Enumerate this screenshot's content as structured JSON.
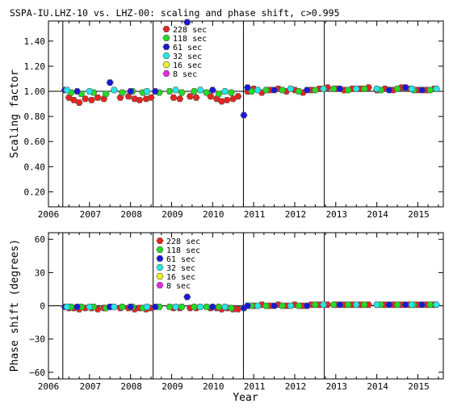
{
  "chart_data": {
    "title": "SSPA-IU.LHZ-10 vs. LHZ-00: scaling and phase shift, c>0.995",
    "xlabel": "Year",
    "x_ticks": [
      "2006",
      "2007",
      "2008",
      "2009",
      "2010",
      "2011",
      "2012",
      "2013",
      "2014",
      "2015"
    ],
    "xlim": [
      2006.0,
      2015.62
    ],
    "event_lines_x": [
      2006.35,
      2008.55,
      2010.75,
      2012.72
    ],
    "legend": [
      {
        "label": "228 sec",
        "color": "#e8231e"
      },
      {
        "label": "118 sec",
        "color": "#22dd22"
      },
      {
        "label": "61 sec",
        "color": "#1818d8"
      },
      {
        "label": "32 sec",
        "color": "#22e8e8"
      },
      {
        "label": "16 sec",
        "color": "#f2f222"
      },
      {
        "label": "8 sec",
        "color": "#e825e8"
      }
    ],
    "panels": [
      {
        "type": "scatter",
        "ylabel": "Scaling factor",
        "ylim": [
          0.08,
          1.56
        ],
        "y_ticks": [
          "0.20",
          "0.40",
          "0.60",
          "0.80",
          "1.00",
          "1.20",
          "1.40"
        ],
        "baseline": 1.0,
        "series": [
          {
            "name": "228 sec",
            "color": "#e8231e",
            "points": [
              [
                2006.5,
                0.95
              ],
              [
                2006.62,
                0.93
              ],
              [
                2006.75,
                0.91
              ],
              [
                2006.9,
                0.94
              ],
              [
                2007.05,
                0.93
              ],
              [
                2007.2,
                0.95
              ],
              [
                2007.35,
                0.94
              ],
              [
                2007.75,
                0.95
              ],
              [
                2007.95,
                0.96
              ],
              [
                2008.1,
                0.94
              ],
              [
                2008.22,
                0.93
              ],
              [
                2008.38,
                0.94
              ],
              [
                2008.5,
                0.95
              ],
              [
                2009.05,
                0.95
              ],
              [
                2009.2,
                0.94
              ],
              [
                2009.45,
                0.96
              ],
              [
                2009.6,
                0.95
              ],
              [
                2009.95,
                0.96
              ],
              [
                2010.1,
                0.94
              ],
              [
                2010.22,
                0.92
              ],
              [
                2010.35,
                0.93
              ],
              [
                2010.5,
                0.94
              ],
              [
                2010.62,
                0.96
              ],
              [
                2010.85,
                1.0
              ],
              [
                2011.0,
                1.02
              ],
              [
                2011.2,
                0.99
              ],
              [
                2011.4,
                1.01
              ],
              [
                2011.6,
                1.02
              ],
              [
                2011.8,
                1.0
              ],
              [
                2012.0,
                1.01
              ],
              [
                2012.2,
                0.99
              ],
              [
                2012.4,
                1.01
              ],
              [
                2012.6,
                1.02
              ],
              [
                2012.8,
                1.03
              ],
              [
                2013.0,
                1.02
              ],
              [
                2013.2,
                1.01
              ],
              [
                2013.4,
                1.02
              ],
              [
                2013.6,
                1.02
              ],
              [
                2013.8,
                1.03
              ],
              [
                2014.0,
                1.01
              ],
              [
                2014.2,
                1.02
              ],
              [
                2014.4,
                1.01
              ],
              [
                2014.6,
                1.03
              ],
              [
                2014.8,
                1.02
              ],
              [
                2015.0,
                1.01
              ],
              [
                2015.2,
                1.01
              ],
              [
                2015.4,
                1.02
              ]
            ]
          },
          {
            "name": "118 sec",
            "color": "#22dd22",
            "points": [
              [
                2006.55,
                0.99
              ],
              [
                2006.8,
                0.98
              ],
              [
                2007.1,
                0.99
              ],
              [
                2007.4,
                0.98
              ],
              [
                2007.8,
                0.99
              ],
              [
                2008.05,
                1.0
              ],
              [
                2008.3,
                0.99
              ],
              [
                2008.7,
                0.99
              ],
              [
                2008.95,
                1.0
              ],
              [
                2009.25,
                0.99
              ],
              [
                2009.55,
                1.0
              ],
              [
                2009.85,
                0.99
              ],
              [
                2010.15,
                0.98
              ],
              [
                2010.45,
                0.99
              ],
              [
                2010.95,
                1.0
              ],
              [
                2011.3,
                1.01
              ],
              [
                2011.7,
                1.01
              ],
              [
                2012.1,
                1.0
              ],
              [
                2012.5,
                1.01
              ],
              [
                2012.95,
                1.02
              ],
              [
                2013.3,
                1.01
              ],
              [
                2013.7,
                1.02
              ],
              [
                2014.1,
                1.01
              ],
              [
                2014.5,
                1.02
              ],
              [
                2014.9,
                1.01
              ],
              [
                2015.3,
                1.01
              ]
            ]
          },
          {
            "name": "61 sec",
            "color": "#1818d8",
            "points": [
              [
                2006.4,
                1.01
              ],
              [
                2006.7,
                1.0
              ],
              [
                2007.5,
                1.07
              ],
              [
                2008.0,
                1.0
              ],
              [
                2008.6,
                1.0
              ],
              [
                2009.38,
                1.55
              ],
              [
                2010.0,
                1.01
              ],
              [
                2010.76,
                0.81
              ],
              [
                2010.85,
                1.03
              ],
              [
                2011.5,
                1.01
              ],
              [
                2012.3,
                1.01
              ],
              [
                2013.1,
                1.02
              ],
              [
                2014.3,
                1.01
              ],
              [
                2014.7,
                1.03
              ],
              [
                2015.1,
                1.01
              ]
            ]
          },
          {
            "name": "32 sec",
            "color": "#22e8e8",
            "points": [
              [
                2006.45,
                1.01
              ],
              [
                2007.0,
                1.0
              ],
              [
                2007.6,
                1.01
              ],
              [
                2008.4,
                1.0
              ],
              [
                2009.1,
                1.01
              ],
              [
                2009.7,
                1.01
              ],
              [
                2010.3,
                1.0
              ],
              [
                2011.1,
                1.01
              ],
              [
                2011.9,
                1.02
              ],
              [
                2012.7,
                1.02
              ],
              [
                2013.5,
                1.02
              ],
              [
                2014.0,
                1.02
              ],
              [
                2014.85,
                1.02
              ],
              [
                2015.45,
                1.02
              ]
            ]
          },
          {
            "name": "16 sec",
            "color": "#f2f222",
            "points": []
          },
          {
            "name": "8 sec",
            "color": "#e825e8",
            "points": []
          }
        ]
      },
      {
        "type": "scatter",
        "ylabel": "Phase shift (degrees)",
        "ylim": [
          -66,
          66
        ],
        "y_ticks": [
          "60",
          "30",
          "0",
          "−30",
          "−60"
        ],
        "baseline": 0,
        "series": [
          {
            "name": "228 sec",
            "color": "#e8231e",
            "points": [
              [
                2006.5,
                -2
              ],
              [
                2006.62,
                -2
              ],
              [
                2006.75,
                -3
              ],
              [
                2006.9,
                -2
              ],
              [
                2007.05,
                -2
              ],
              [
                2007.2,
                -3
              ],
              [
                2007.35,
                -2
              ],
              [
                2007.75,
                -2
              ],
              [
                2007.95,
                -2
              ],
              [
                2008.1,
                -3
              ],
              [
                2008.22,
                -2
              ],
              [
                2008.38,
                -3
              ],
              [
                2008.5,
                -2
              ],
              [
                2009.05,
                -2
              ],
              [
                2009.2,
                -2
              ],
              [
                2009.45,
                -2
              ],
              [
                2009.6,
                -2
              ],
              [
                2009.95,
                -2
              ],
              [
                2010.1,
                -2
              ],
              [
                2010.22,
                -3
              ],
              [
                2010.35,
                -2
              ],
              [
                2010.5,
                -3
              ],
              [
                2010.62,
                -3
              ],
              [
                2010.85,
                0
              ],
              [
                2011.0,
                0
              ],
              [
                2011.2,
                1
              ],
              [
                2011.4,
                0
              ],
              [
                2011.6,
                1
              ],
              [
                2011.8,
                0
              ],
              [
                2012.0,
                1
              ],
              [
                2012.2,
                0
              ],
              [
                2012.4,
                1
              ],
              [
                2012.6,
                1
              ],
              [
                2012.8,
                1
              ],
              [
                2013.0,
                1
              ],
              [
                2013.2,
                1
              ],
              [
                2013.4,
                1
              ],
              [
                2013.6,
                1
              ],
              [
                2013.8,
                1
              ],
              [
                2014.0,
                1
              ],
              [
                2014.2,
                1
              ],
              [
                2014.4,
                1
              ],
              [
                2014.6,
                1
              ],
              [
                2014.8,
                1
              ],
              [
                2015.0,
                1
              ],
              [
                2015.2,
                1
              ],
              [
                2015.4,
                1
              ]
            ]
          },
          {
            "name": "118 sec",
            "color": "#22dd22",
            "points": [
              [
                2006.55,
                -1
              ],
              [
                2006.8,
                -1
              ],
              [
                2007.1,
                -1
              ],
              [
                2007.4,
                -2
              ],
              [
                2007.8,
                -1
              ],
              [
                2008.05,
                -1
              ],
              [
                2008.3,
                -2
              ],
              [
                2008.7,
                -1
              ],
              [
                2008.95,
                -1
              ],
              [
                2009.25,
                -1
              ],
              [
                2009.55,
                -1
              ],
              [
                2009.85,
                -1
              ],
              [
                2010.15,
                -1
              ],
              [
                2010.45,
                -2
              ],
              [
                2010.95,
                0
              ],
              [
                2011.3,
                0
              ],
              [
                2011.7,
                0
              ],
              [
                2012.1,
                0
              ],
              [
                2012.5,
                1
              ],
              [
                2012.95,
                1
              ],
              [
                2013.3,
                1
              ],
              [
                2013.7,
                1
              ],
              [
                2014.1,
                1
              ],
              [
                2014.5,
                1
              ],
              [
                2014.9,
                1
              ],
              [
                2015.3,
                1
              ]
            ]
          },
          {
            "name": "61 sec",
            "color": "#1818d8",
            "points": [
              [
                2006.4,
                -1
              ],
              [
                2006.7,
                -1
              ],
              [
                2007.5,
                -1
              ],
              [
                2008.0,
                -1
              ],
              [
                2008.6,
                -1
              ],
              [
                2009.38,
                8
              ],
              [
                2010.0,
                -1
              ],
              [
                2010.76,
                -2
              ],
              [
                2010.85,
                0
              ],
              [
                2011.5,
                0
              ],
              [
                2012.3,
                0
              ],
              [
                2013.1,
                1
              ],
              [
                2014.3,
                1
              ],
              [
                2014.7,
                1
              ],
              [
                2015.1,
                1
              ]
            ]
          },
          {
            "name": "32 sec",
            "color": "#22e8e8",
            "points": [
              [
                2006.45,
                -1
              ],
              [
                2007.0,
                -1
              ],
              [
                2007.6,
                -1
              ],
              [
                2008.4,
                -1
              ],
              [
                2009.1,
                -1
              ],
              [
                2009.7,
                -1
              ],
              [
                2010.3,
                -1
              ],
              [
                2011.1,
                0
              ],
              [
                2011.9,
                0
              ],
              [
                2012.7,
                1
              ],
              [
                2013.5,
                1
              ],
              [
                2014.0,
                1
              ],
              [
                2014.85,
                1
              ],
              [
                2015.45,
                1
              ]
            ]
          },
          {
            "name": "16 sec",
            "color": "#f2f222",
            "points": []
          },
          {
            "name": "8 sec",
            "color": "#e825e8",
            "points": []
          }
        ]
      }
    ]
  }
}
